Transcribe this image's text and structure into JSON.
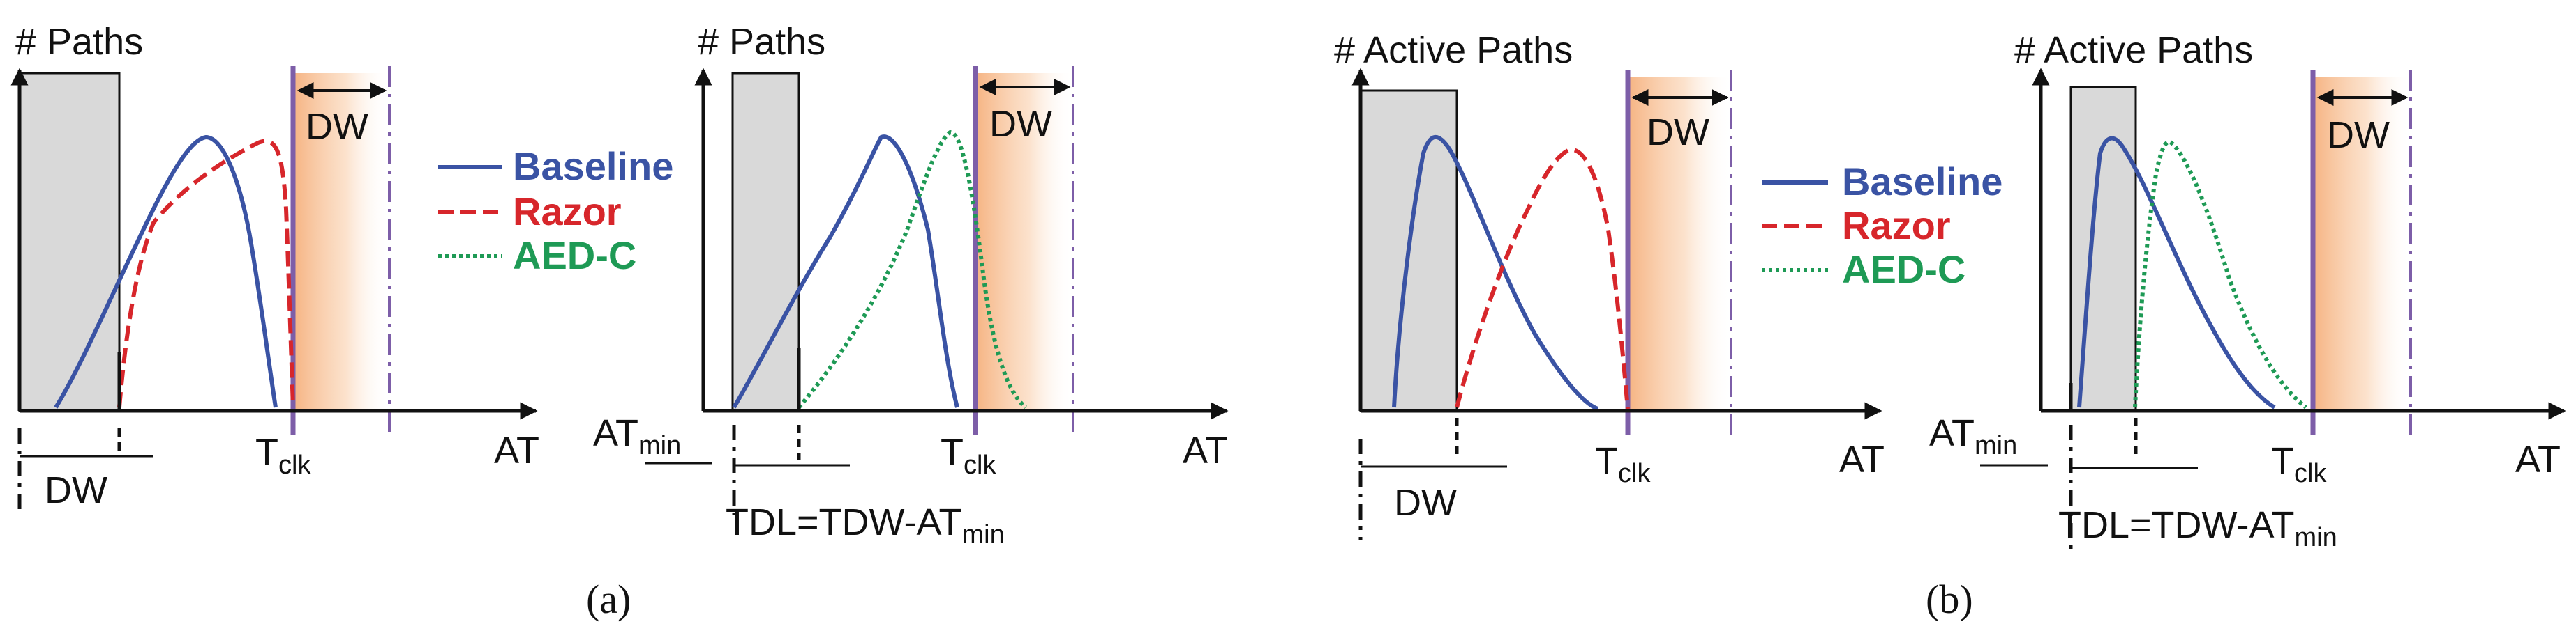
{
  "colors": {
    "baseline": "#3a53a4",
    "razor": "#d7262b",
    "aedc": "#1e9a55",
    "clock_line": "#7d5ea8",
    "window_fill": "#f4a66c",
    "gray_box": "#d9d9d9",
    "axis": "#111111"
  },
  "legend": {
    "baseline": "Baseline",
    "razor": "Razor",
    "aedc": "AED-C"
  },
  "panels": [
    {
      "caption": "(a)",
      "plots": [
        {
          "ylabel": "# Paths",
          "xlabel": "AT",
          "tclk_main": "T",
          "tclk_sub": "clk",
          "dw_top": "DW",
          "bottom_label": "DW",
          "series": [
            "baseline",
            "razor"
          ]
        },
        {
          "ylabel": "# Paths",
          "xlabel": "AT",
          "tclk_main": "T",
          "tclk_sub": "clk",
          "dw_top": "DW",
          "atmin_main": "AT",
          "atmin_sub": "min",
          "bottom_label_main": "TDL=TDW-AT",
          "bottom_label_sub": "min",
          "series": [
            "baseline",
            "aedc"
          ]
        }
      ]
    },
    {
      "caption": "(b)",
      "plots": [
        {
          "ylabel": "# Active Paths",
          "xlabel": "AT",
          "tclk_main": "T",
          "tclk_sub": "clk",
          "dw_top": "DW",
          "bottom_label": "DW",
          "series": [
            "baseline",
            "razor"
          ]
        },
        {
          "ylabel": "# Active Paths",
          "xlabel": "AT",
          "tclk_main": "T",
          "tclk_sub": "clk",
          "dw_top": "DW",
          "atmin_main": "AT",
          "atmin_sub": "min",
          "bottom_label_main": "TDL=TDW-AT",
          "bottom_label_sub": "min",
          "series": [
            "baseline",
            "aedc"
          ]
        }
      ]
    }
  ]
}
